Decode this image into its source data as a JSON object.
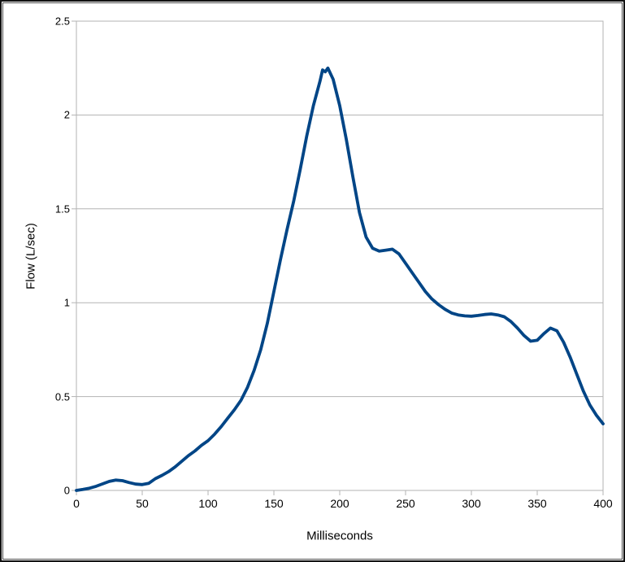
{
  "chart_data": {
    "type": "line",
    "title": "",
    "xlabel": "Milliseconds",
    "ylabel": "Flow (L/sec)",
    "xlim": [
      0,
      400
    ],
    "ylim": [
      0,
      2.5
    ],
    "x_ticks": [
      0,
      50,
      100,
      150,
      200,
      250,
      300,
      350,
      400
    ],
    "x_tick_labels": [
      "0",
      "50",
      "100",
      "150",
      "200",
      "250",
      "300",
      "350",
      "400"
    ],
    "y_ticks": [
      0,
      0.5,
      1,
      1.5,
      2,
      2.5
    ],
    "y_tick_labels": [
      "0",
      "0.5",
      "1",
      "1.5",
      "2",
      "2.5"
    ],
    "grid": "horizontal",
    "legend": "none",
    "colors": {
      "line": "#004586",
      "grid": "#b3b3b3",
      "text": "#000000",
      "background": "#ffffff"
    },
    "series": [
      {
        "name": "Flow",
        "x": [
          0,
          5,
          10,
          15,
          20,
          25,
          30,
          35,
          40,
          45,
          50,
          55,
          60,
          65,
          70,
          75,
          80,
          85,
          90,
          95,
          100,
          105,
          110,
          115,
          120,
          125,
          130,
          135,
          140,
          145,
          150,
          155,
          160,
          165,
          170,
          175,
          180,
          185,
          187,
          189,
          191,
          195,
          200,
          205,
          210,
          215,
          220,
          225,
          230,
          235,
          240,
          245,
          250,
          255,
          260,
          265,
          270,
          275,
          280,
          285,
          290,
          295,
          300,
          305,
          310,
          315,
          320,
          325,
          330,
          335,
          340,
          345,
          350,
          355,
          360,
          365,
          370,
          375,
          380,
          385,
          390,
          395,
          400
        ],
        "values": [
          0,
          0.005,
          0.012,
          0.022,
          0.035,
          0.048,
          0.055,
          0.052,
          0.042,
          0.034,
          0.031,
          0.038,
          0.063,
          0.08,
          0.1,
          0.125,
          0.155,
          0.185,
          0.21,
          0.24,
          0.265,
          0.3,
          0.34,
          0.385,
          0.43,
          0.48,
          0.55,
          0.64,
          0.75,
          0.89,
          1.06,
          1.23,
          1.39,
          1.54,
          1.71,
          1.89,
          2.05,
          2.18,
          2.24,
          2.23,
          2.25,
          2.19,
          2.05,
          1.87,
          1.67,
          1.48,
          1.35,
          1.29,
          1.275,
          1.28,
          1.285,
          1.26,
          1.21,
          1.16,
          1.11,
          1.06,
          1.02,
          0.99,
          0.965,
          0.945,
          0.935,
          0.93,
          0.928,
          0.932,
          0.937,
          0.94,
          0.935,
          0.925,
          0.9,
          0.865,
          0.825,
          0.795,
          0.8,
          0.835,
          0.865,
          0.85,
          0.79,
          0.71,
          0.62,
          0.53,
          0.455,
          0.4,
          0.355
        ]
      }
    ]
  }
}
